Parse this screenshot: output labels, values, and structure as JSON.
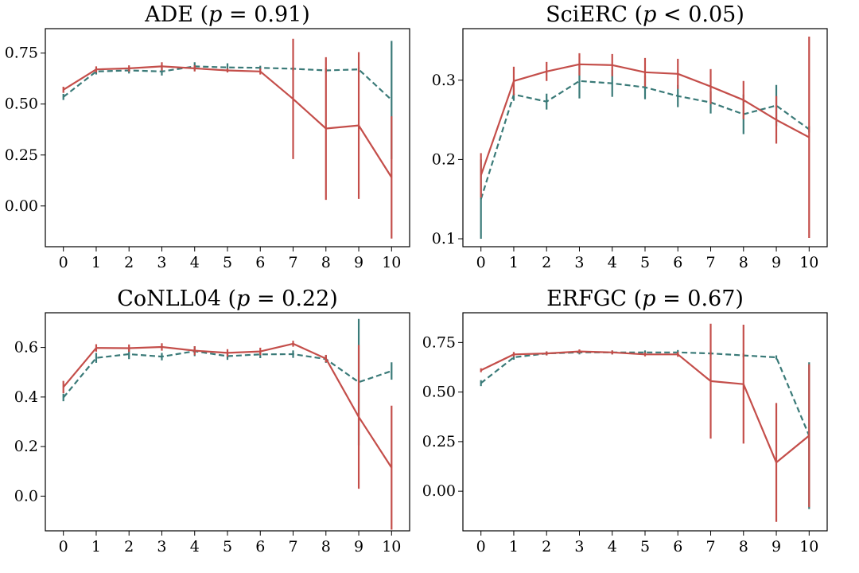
{
  "chart_data": [
    {
      "type": "line",
      "title": "ADE (p = 0.91)",
      "title_prefix": "ADE (",
      "title_var": "p",
      "title_suffix": " = 0.91)",
      "x": [
        0,
        1,
        2,
        3,
        4,
        5,
        6,
        7,
        8,
        9,
        10
      ],
      "ylim": [
        -0.2,
        0.87
      ],
      "yticks": [
        0.0,
        0.25,
        0.5,
        0.75
      ],
      "ytick_labels": [
        "0.00",
        "0.25",
        "0.50",
        "0.75"
      ],
      "series": [
        {
          "name": "solid",
          "style": "solid",
          "color": "#c44e4a",
          "values": [
            0.57,
            0.67,
            0.675,
            0.685,
            0.675,
            0.665,
            0.66,
            0.525,
            0.38,
            0.395,
            0.14
          ],
          "err": [
            0.015,
            0.015,
            0.015,
            0.02,
            0.015,
            0.01,
            0.015,
            0.295,
            0.35,
            0.36,
            0.3
          ]
        },
        {
          "name": "dashed",
          "style": "dashed",
          "color": "#3a7a78",
          "values": [
            0.535,
            0.66,
            0.665,
            0.66,
            0.685,
            0.68,
            0.678,
            0.673,
            0.665,
            0.67,
            0.52
          ],
          "err": [
            0.015,
            0.015,
            0.015,
            0.02,
            0.02,
            0.02,
            0.01,
            0.01,
            0.01,
            0.01,
            0.29
          ]
        }
      ]
    },
    {
      "type": "line",
      "title": "SciERC (p < 0.05)",
      "title_prefix": "SciERC (",
      "title_var": "p",
      "title_suffix": " < 0.05)",
      "x": [
        0,
        1,
        2,
        3,
        4,
        5,
        6,
        7,
        8,
        9,
        10
      ],
      "ylim": [
        0.09,
        0.365
      ],
      "yticks": [
        0.1,
        0.2,
        0.3
      ],
      "ytick_labels": [
        "0.1",
        "0.2",
        "0.3"
      ],
      "series": [
        {
          "name": "solid",
          "style": "solid",
          "color": "#c44e4a",
          "values": [
            0.18,
            0.299,
            0.311,
            0.32,
            0.319,
            0.31,
            0.308,
            0.292,
            0.275,
            0.25,
            0.228
          ],
          "err": [
            0.028,
            0.018,
            0.012,
            0.014,
            0.014,
            0.018,
            0.019,
            0.022,
            0.024,
            0.03,
            0.127
          ]
        },
        {
          "name": "dashed",
          "style": "dashed",
          "color": "#3a7a78",
          "values": [
            0.15,
            0.282,
            0.273,
            0.299,
            0.296,
            0.291,
            0.28,
            0.272,
            0.257,
            0.268,
            0.238
          ],
          "err": [
            0.05,
            0.008,
            0.01,
            0.022,
            0.017,
            0.015,
            0.014,
            0.014,
            0.025,
            0.026,
            0.004
          ]
        }
      ]
    },
    {
      "type": "line",
      "title": "CoNLL04 (p = 0.22)",
      "title_prefix": "CoNLL04 (",
      "title_var": "p",
      "title_suffix": " = 0.22)",
      "x": [
        0,
        1,
        2,
        3,
        4,
        5,
        6,
        7,
        8,
        9,
        10
      ],
      "ylim": [
        -0.14,
        0.74
      ],
      "yticks": [
        0.0,
        0.2,
        0.4,
        0.6
      ],
      "ytick_labels": [
        "0.0",
        "0.2",
        "0.4",
        "0.6"
      ],
      "series": [
        {
          "name": "solid",
          "style": "solid",
          "color": "#c44e4a",
          "values": [
            0.44,
            0.598,
            0.597,
            0.602,
            0.587,
            0.578,
            0.584,
            0.615,
            0.555,
            0.32,
            0.115
          ],
          "err": [
            0.025,
            0.015,
            0.015,
            0.015,
            0.018,
            0.015,
            0.015,
            0.012,
            0.015,
            0.29,
            0.25
          ]
        },
        {
          "name": "dashed",
          "style": "dashed",
          "color": "#3a7a78",
          "values": [
            0.398,
            0.558,
            0.573,
            0.563,
            0.585,
            0.565,
            0.572,
            0.573,
            0.553,
            0.46,
            0.505
          ],
          "err": [
            0.015,
            0.02,
            0.02,
            0.015,
            0.02,
            0.015,
            0.015,
            0.015,
            0.015,
            0.255,
            0.035
          ]
        }
      ]
    },
    {
      "type": "line",
      "title": "ERFGC (p = 0.67)",
      "title_prefix": "ERFGC (",
      "title_var": "p",
      "title_suffix": " = 0.67)",
      "x": [
        0,
        1,
        2,
        3,
        4,
        5,
        6,
        7,
        8,
        9,
        10
      ],
      "ylim": [
        -0.2,
        0.9
      ],
      "yticks": [
        0.0,
        0.25,
        0.5,
        0.75
      ],
      "ytick_labels": [
        "0.00",
        "0.25",
        "0.50",
        "0.75"
      ],
      "series": [
        {
          "name": "solid",
          "style": "solid",
          "color": "#c44e4a",
          "values": [
            0.61,
            0.69,
            0.695,
            0.705,
            0.7,
            0.69,
            0.69,
            0.555,
            0.54,
            0.145,
            0.28
          ],
          "err": [
            0.01,
            0.012,
            0.01,
            0.01,
            0.01,
            0.01,
            0.012,
            0.29,
            0.3,
            0.3,
            0.36
          ]
        },
        {
          "name": "dashed",
          "style": "dashed",
          "color": "#3a7a78",
          "values": [
            0.545,
            0.675,
            0.695,
            0.7,
            0.7,
            0.7,
            0.7,
            0.695,
            0.685,
            0.675,
            0.28
          ],
          "err": [
            0.015,
            0.012,
            0.01,
            0.01,
            0.01,
            0.01,
            0.012,
            0.01,
            0.01,
            0.01,
            0.37
          ]
        }
      ]
    }
  ]
}
